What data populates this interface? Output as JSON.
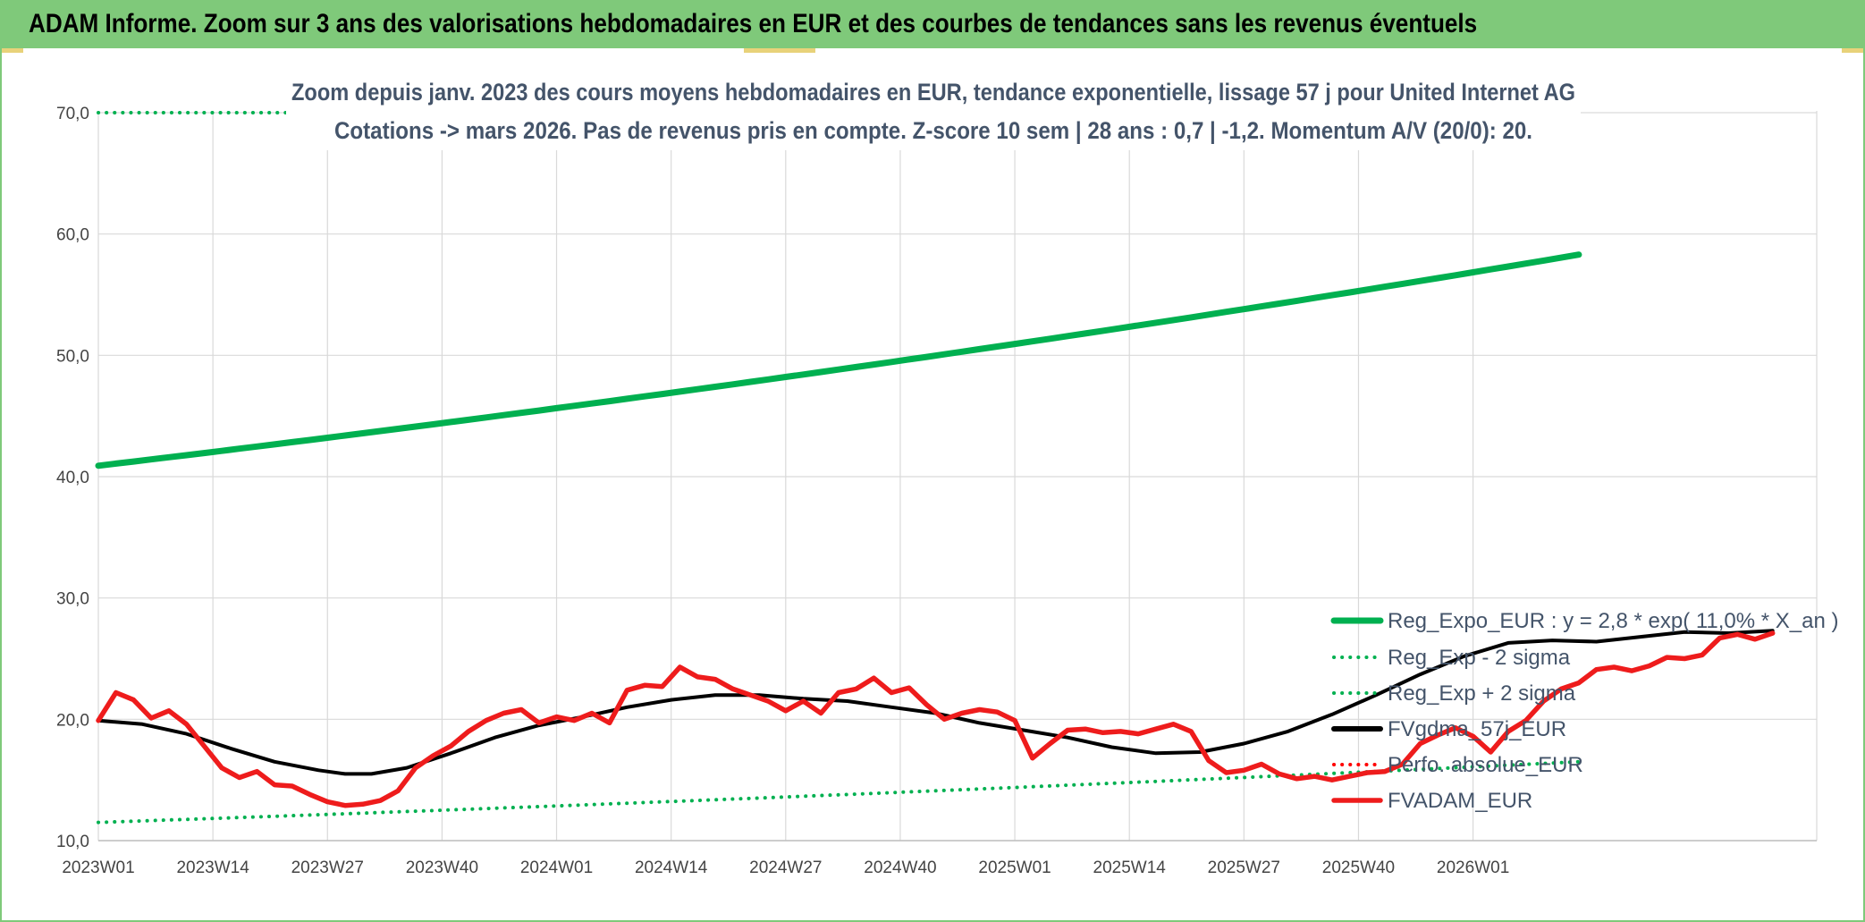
{
  "header": {
    "title": "ADAM Informe. Zoom sur 3 ans des valorisations hebdomadaires en EUR et des courbes de tendances sans les revenus éventuels"
  },
  "chart_data": {
    "type": "line",
    "title_line1": "Zoom depuis janv. 2023 des cours moyens hebdomadaires en EUR, tendance exponentielle, lissage 57 j pour United Internet AG",
    "title_line2": "Cotations -> mars 2026. Pas de revenus pris en compte. Z-score 10 sem | 28 ans : 0,7 | -1,2. Momentum A/V (20/0): 20.",
    "x_tick_labels": [
      "2023W01",
      "2023W14",
      "2023W27",
      "2023W40",
      "2024W01",
      "2024W14",
      "2024W27",
      "2024W40",
      "2025W01",
      "2025W14",
      "2025W27",
      "2025W40",
      "2026W01"
    ],
    "y_tick_labels": [
      "10,0",
      "20,0",
      "30,0",
      "40,0",
      "50,0",
      "60,0",
      "70,0"
    ],
    "ylim": [
      10,
      70
    ],
    "weeks_total": 168,
    "grid": true,
    "legend_position": "bottom-right",
    "series": [
      {
        "name": "Reg_Expo_EUR : y = 2,8 * exp( 11,0% * X_an )",
        "color": "#00b050",
        "style": "solid",
        "start": 40.9,
        "end": 58.3
      },
      {
        "name": "Reg_Exp - 2 sigma",
        "color": "#00b050",
        "style": "dotted",
        "start": 11.5,
        "end": 16.5
      },
      {
        "name": "Reg_Exp + 2 sigma",
        "color": "#00b050",
        "style": "dotted",
        "start": 70.0,
        "end": 70.0
      },
      {
        "name": "FVgdma_57j_EUR",
        "color": "#000000",
        "style": "solid",
        "points": [
          [
            0,
            19.9
          ],
          [
            5,
            19.6
          ],
          [
            10,
            18.8
          ],
          [
            15,
            17.6
          ],
          [
            20,
            16.5
          ],
          [
            25,
            15.8
          ],
          [
            28,
            15.5
          ],
          [
            31,
            15.5
          ],
          [
            35,
            16.0
          ],
          [
            40,
            17.2
          ],
          [
            45,
            18.5
          ],
          [
            50,
            19.5
          ],
          [
            55,
            20.2
          ],
          [
            60,
            21.0
          ],
          [
            65,
            21.6
          ],
          [
            70,
            22.0
          ],
          [
            75,
            22.0
          ],
          [
            80,
            21.7
          ],
          [
            85,
            21.5
          ],
          [
            90,
            21.0
          ],
          [
            95,
            20.5
          ],
          [
            100,
            19.7
          ],
          [
            105,
            19.1
          ],
          [
            110,
            18.5
          ],
          [
            115,
            17.7
          ],
          [
            120,
            17.2
          ],
          [
            125,
            17.3
          ],
          [
            130,
            18.0
          ],
          [
            135,
            19.0
          ],
          [
            140,
            20.4
          ],
          [
            145,
            22.0
          ],
          [
            150,
            23.7
          ],
          [
            155,
            25.2
          ],
          [
            160,
            26.3
          ],
          [
            165,
            26.5
          ],
          [
            170,
            26.4
          ],
          [
            175,
            26.8
          ],
          [
            180,
            27.2
          ],
          [
            185,
            27.1
          ],
          [
            190,
            27.3
          ]
        ]
      },
      {
        "name": "Perfo. absolue_EUR",
        "color": "#ff0000",
        "style": "dotted",
        "points": []
      },
      {
        "name": "FVADAM_EUR",
        "color": "#ee1c1c",
        "style": "solid",
        "points": [
          [
            0,
            19.9
          ],
          [
            2,
            22.2
          ],
          [
            4,
            21.6
          ],
          [
            6,
            20.1
          ],
          [
            8,
            20.7
          ],
          [
            10,
            19.6
          ],
          [
            12,
            17.8
          ],
          [
            14,
            16.0
          ],
          [
            16,
            15.2
          ],
          [
            18,
            15.7
          ],
          [
            20,
            14.6
          ],
          [
            22,
            14.5
          ],
          [
            24,
            13.8
          ],
          [
            26,
            13.2
          ],
          [
            28,
            12.9
          ],
          [
            30,
            13.0
          ],
          [
            32,
            13.3
          ],
          [
            34,
            14.1
          ],
          [
            36,
            16.0
          ],
          [
            38,
            17.0
          ],
          [
            40,
            17.8
          ],
          [
            42,
            19.0
          ],
          [
            44,
            19.9
          ],
          [
            46,
            20.5
          ],
          [
            48,
            20.8
          ],
          [
            50,
            19.7
          ],
          [
            52,
            20.2
          ],
          [
            54,
            19.9
          ],
          [
            56,
            20.5
          ],
          [
            58,
            19.7
          ],
          [
            60,
            22.4
          ],
          [
            62,
            22.8
          ],
          [
            64,
            22.7
          ],
          [
            66,
            24.3
          ],
          [
            68,
            23.5
          ],
          [
            70,
            23.3
          ],
          [
            72,
            22.5
          ],
          [
            74,
            22.0
          ],
          [
            76,
            21.5
          ],
          [
            78,
            20.7
          ],
          [
            80,
            21.5
          ],
          [
            82,
            20.5
          ],
          [
            84,
            22.2
          ],
          [
            86,
            22.5
          ],
          [
            88,
            23.4
          ],
          [
            90,
            22.2
          ],
          [
            92,
            22.6
          ],
          [
            94,
            21.2
          ],
          [
            96,
            20.0
          ],
          [
            98,
            20.5
          ],
          [
            100,
            20.8
          ],
          [
            102,
            20.6
          ],
          [
            104,
            19.9
          ],
          [
            106,
            16.8
          ],
          [
            108,
            18.0
          ],
          [
            110,
            19.1
          ],
          [
            112,
            19.2
          ],
          [
            114,
            18.9
          ],
          [
            116,
            19.0
          ],
          [
            118,
            18.8
          ],
          [
            120,
            19.2
          ],
          [
            122,
            19.6
          ],
          [
            124,
            19.0
          ],
          [
            126,
            16.6
          ],
          [
            128,
            15.6
          ],
          [
            130,
            15.8
          ],
          [
            132,
            16.3
          ],
          [
            134,
            15.5
          ],
          [
            136,
            15.1
          ],
          [
            138,
            15.3
          ],
          [
            140,
            15.0
          ],
          [
            142,
            15.3
          ],
          [
            144,
            15.6
          ],
          [
            146,
            15.7
          ],
          [
            148,
            16.3
          ],
          [
            150,
            18.0
          ],
          [
            152,
            18.7
          ],
          [
            154,
            19.3
          ],
          [
            156,
            18.6
          ],
          [
            158,
            17.3
          ],
          [
            160,
            19.0
          ],
          [
            162,
            19.9
          ],
          [
            164,
            21.5
          ],
          [
            166,
            22.5
          ],
          [
            168,
            23.0
          ],
          [
            170,
            24.1
          ],
          [
            172,
            24.3
          ],
          [
            174,
            24.0
          ],
          [
            176,
            24.4
          ],
          [
            178,
            25.1
          ],
          [
            180,
            25.0
          ],
          [
            182,
            25.3
          ],
          [
            184,
            26.7
          ],
          [
            186,
            27.0
          ],
          [
            188,
            26.6
          ],
          [
            190,
            27.1
          ]
        ]
      }
    ]
  }
}
